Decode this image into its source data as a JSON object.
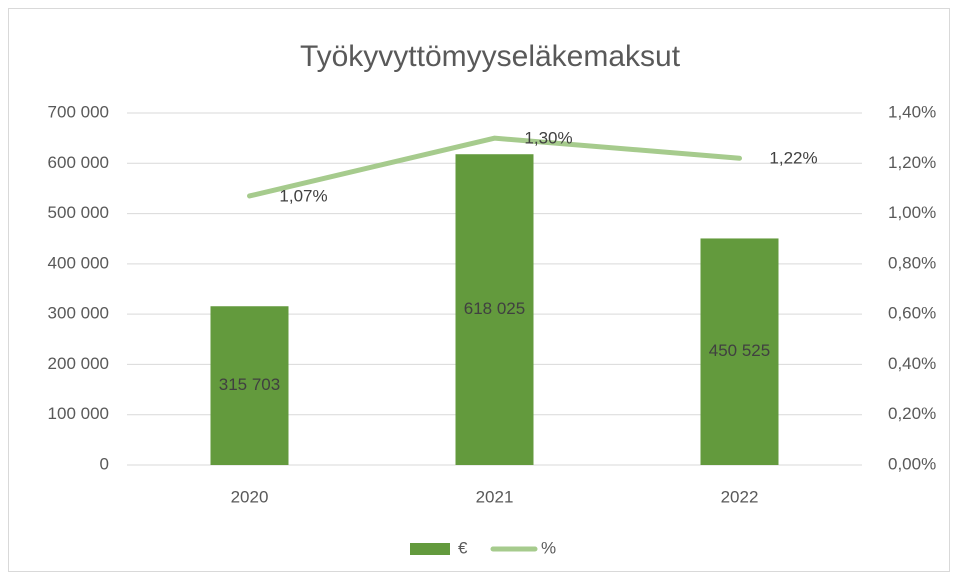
{
  "chart_data": {
    "type": "combo",
    "title": "Työkyvyttömyyseläkemaksut",
    "categories": [
      "2020",
      "2021",
      "2022"
    ],
    "series": [
      {
        "name": "€",
        "type": "bar",
        "color": "#639a3d",
        "values": [
          315703,
          618025,
          450525
        ],
        "value_labels": [
          "315 703",
          "618 025",
          "450 525"
        ]
      },
      {
        "name": "%",
        "type": "line",
        "axis": "y2",
        "color": "#a6cb8d",
        "values": [
          1.07,
          1.3,
          1.22
        ],
        "value_labels": [
          "1,07%",
          "1,30%",
          "1,22%"
        ]
      }
    ],
    "ylim": [
      0,
      700000
    ],
    "yticks": [
      0,
      {
        "value": 100000,
        "label": "100 000"
      },
      {
        "value": 200000,
        "label": "200 000"
      },
      {
        "value": 300000,
        "label": "300 000"
      },
      {
        "value": 400000,
        "label": "400 000"
      },
      {
        "value": 500000,
        "label": "500 000"
      },
      {
        "value": 600000,
        "label": "600 000"
      },
      {
        "value": 700000,
        "label": "700 000"
      }
    ],
    "y2lim": [
      0,
      1.4
    ],
    "y2ticks": [
      {
        "value": 0,
        "label": "0,00%"
      },
      {
        "value": 0.2,
        "label": "0,20%"
      },
      {
        "value": 0.4,
        "label": "0,40%"
      },
      {
        "value": 0.6,
        "label": "0,60%"
      },
      {
        "value": 0.8,
        "label": "0,80%"
      },
      {
        "value": 1.0,
        "label": "1,00%"
      },
      {
        "value": 1.2,
        "label": "1,20%"
      },
      {
        "value": 1.4,
        "label": "1,40%"
      }
    ],
    "grid": true,
    "legend": "bottom"
  }
}
